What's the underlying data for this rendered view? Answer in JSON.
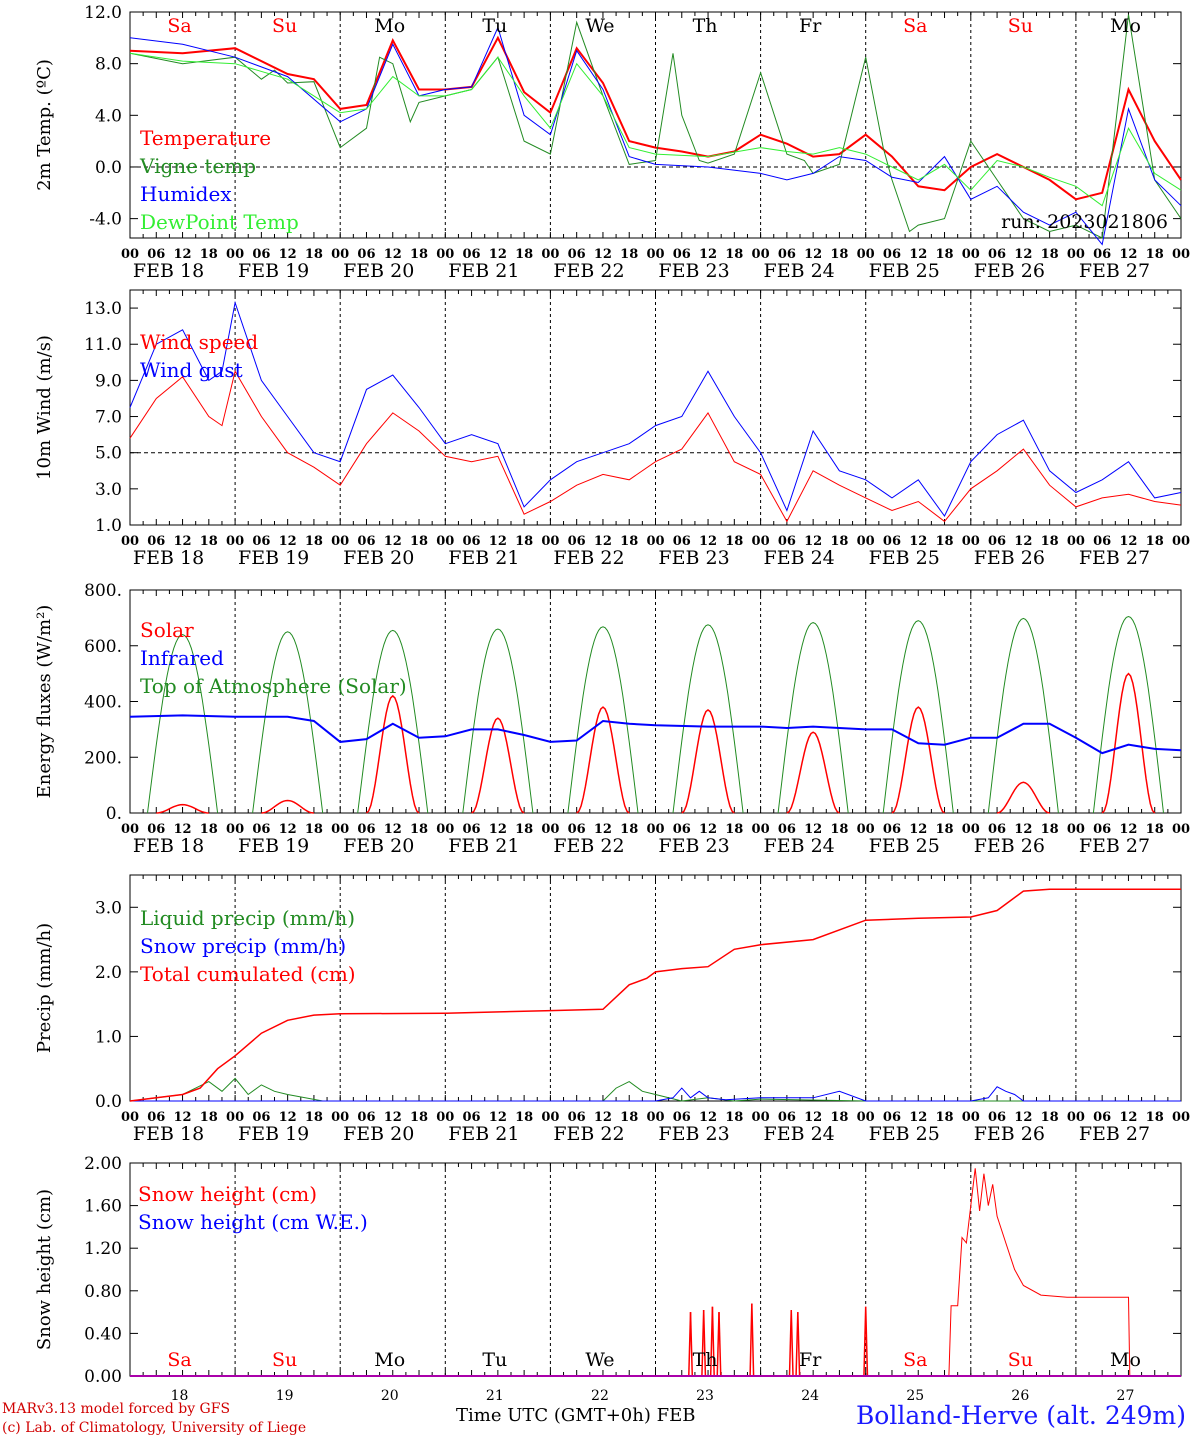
{
  "meta": {
    "run_label": "run: 2023021806",
    "station": "Bolland-Herve (alt. 249m)",
    "credits": [
      "MARv3.13 model forced by GFS",
      "(c) Lab. of Climatology, University of Liege"
    ],
    "xaxis_title": "Time UTC (GMT+0h)",
    "month_label": "FEB"
  },
  "days": {
    "names": [
      "Sa",
      "Su",
      "Mo",
      "Tu",
      "We",
      "Th",
      "Fr",
      "Sa",
      "Su",
      "Mo"
    ],
    "weekend_color": "#ff0000",
    "weekday_color": "#000000",
    "weekend_index": [
      0,
      1,
      7,
      8
    ],
    "date_labels": [
      "FEB 18",
      "FEB 19",
      "FEB 20",
      "FEB 21",
      "FEB 22",
      "FEB 23",
      "FEB 24",
      "FEB 25",
      "FEB 26",
      "FEB 27"
    ],
    "day_numbers": [
      "18",
      "19",
      "20",
      "21",
      "22",
      "23",
      "24",
      "25",
      "26",
      "27"
    ],
    "hour_ticks": [
      "00",
      "06",
      "12",
      "18"
    ],
    "final_hour": "00"
  },
  "colors": {
    "red": "#ff0000",
    "green": "#228b22",
    "blue": "#0000ff",
    "lightgreen": "#33ee33",
    "grid": "#000000"
  },
  "chart_data": [
    {
      "id": "temp",
      "type": "line",
      "ylabel": "2m Temp. (ºC)",
      "ylim": [
        -5.5,
        12.0
      ],
      "ticks": [
        -4.0,
        0.0,
        4.0,
        8.0,
        12.0
      ],
      "tick_labels": [
        "-4.0",
        "0.0",
        "4.0",
        "8.0",
        "12.0"
      ],
      "dashed_ref": 0.0,
      "x_unit": "hours from 2023-02-18 00 UTC",
      "series": [
        {
          "name": "Temperature",
          "color": "#ff0000",
          "width": 2,
          "x": [
            0,
            12,
            24,
            36,
            42,
            48,
            54,
            60,
            66,
            72,
            78,
            84,
            90,
            96,
            102,
            108,
            114,
            120,
            126,
            132,
            138,
            144,
            150,
            156,
            162,
            168,
            174,
            180,
            186,
            192,
            198,
            204,
            210,
            216,
            222,
            228,
            234,
            240
          ],
          "y": [
            9.0,
            8.8,
            9.2,
            7.2,
            6.8,
            4.5,
            4.8,
            9.8,
            6.0,
            6.0,
            6.2,
            10.0,
            5.8,
            4.2,
            9.2,
            6.5,
            2.0,
            1.5,
            1.2,
            0.8,
            1.2,
            2.5,
            1.8,
            0.8,
            1.0,
            2.5,
            0.8,
            -1.5,
            -1.8,
            0.0,
            1.0,
            0.0,
            -1.0,
            -2.5,
            -2.0,
            6.0,
            2.0,
            -1.0
          ]
        },
        {
          "name": "Vigne temp",
          "color": "#228b22",
          "width": 1,
          "x": [
            0,
            12,
            24,
            30,
            33,
            36,
            42,
            48,
            54,
            57,
            60,
            64,
            66,
            72,
            78,
            84,
            90,
            96,
            102,
            108,
            114,
            120,
            124,
            126,
            130,
            132,
            138,
            144,
            150,
            154,
            156,
            162,
            168,
            172,
            174,
            178,
            180,
            186,
            192,
            198,
            204,
            210,
            216,
            222,
            228,
            234,
            240
          ],
          "y": [
            8.8,
            8.0,
            8.5,
            6.8,
            7.5,
            6.5,
            6.6,
            1.5,
            3.0,
            8.5,
            8.0,
            3.5,
            5.0,
            5.5,
            6.0,
            8.5,
            2.0,
            1.0,
            11.2,
            5.5,
            0.2,
            0.5,
            8.8,
            4.0,
            0.5,
            0.3,
            1.0,
            7.3,
            1.0,
            0.5,
            -0.5,
            0.2,
            8.5,
            1.5,
            -1.0,
            -5.0,
            -4.5,
            -4.0,
            2.0,
            -1.0,
            -4.0,
            -5.0,
            -4.5,
            -5.5,
            11.8,
            -1.0,
            -4.0
          ]
        },
        {
          "name": "Humidex",
          "color": "#0000ff",
          "width": 1,
          "x": [
            0,
            12,
            24,
            36,
            48,
            54,
            60,
            66,
            72,
            78,
            84,
            90,
            96,
            102,
            108,
            114,
            120,
            132,
            144,
            150,
            156,
            162,
            168,
            174,
            180,
            186,
            192,
            198,
            204,
            210,
            216,
            222,
            228,
            234,
            240
          ],
          "y": [
            10.0,
            9.5,
            8.5,
            7.0,
            3.5,
            4.5,
            9.5,
            5.5,
            6.0,
            6.2,
            10.8,
            4.0,
            2.5,
            9.0,
            6.0,
            0.8,
            0.2,
            0.0,
            -0.5,
            -1.0,
            -0.5,
            0.8,
            0.5,
            -0.8,
            -1.2,
            0.8,
            -2.5,
            -1.5,
            -3.5,
            -4.5,
            -3.5,
            -6.0,
            4.5,
            -1.0,
            -3.0
          ]
        },
        {
          "name": "DewPoint Temp",
          "color": "#33ee33",
          "width": 1,
          "x": [
            0,
            12,
            24,
            36,
            48,
            54,
            60,
            66,
            72,
            78,
            84,
            90,
            96,
            102,
            108,
            114,
            120,
            132,
            144,
            150,
            156,
            162,
            168,
            174,
            180,
            186,
            192,
            198,
            204,
            210,
            216,
            222,
            228,
            234,
            240
          ],
          "y": [
            8.8,
            8.2,
            8.0,
            6.8,
            4.2,
            4.5,
            7.0,
            5.5,
            5.5,
            6.0,
            8.5,
            5.5,
            3.0,
            8.0,
            5.5,
            1.5,
            1.0,
            0.8,
            1.5,
            1.2,
            1.0,
            1.5,
            1.0,
            0.0,
            -1.0,
            0.2,
            -1.8,
            0.5,
            0.0,
            -0.8,
            -1.5,
            -3.0,
            3.0,
            -0.5,
            -1.8
          ]
        }
      ],
      "legend": [
        "Temperature",
        "Vigne temp",
        "Humidex",
        "DewPoint Temp"
      ],
      "legend_colors": [
        "#ff0000",
        "#228b22",
        "#0000ff",
        "#33ee33"
      ]
    },
    {
      "id": "wind",
      "type": "line",
      "ylabel": "10m Wind (m/s)",
      "ylim": [
        1.0,
        14.0
      ],
      "ticks": [
        1.0,
        3.0,
        5.0,
        7.0,
        9.0,
        11.0,
        13.0
      ],
      "tick_labels": [
        "1.0",
        "3.0",
        "5.0",
        "7.0",
        "9.0",
        "11.0",
        "13.0"
      ],
      "dashed_ref": 5.0,
      "series": [
        {
          "name": "Wind speed",
          "color": "#ff0000",
          "width": 1,
          "x": [
            0,
            6,
            12,
            18,
            21,
            24,
            30,
            36,
            42,
            48,
            54,
            60,
            66,
            72,
            78,
            84,
            90,
            96,
            102,
            108,
            114,
            120,
            126,
            132,
            138,
            144,
            150,
            156,
            162,
            168,
            174,
            180,
            186,
            192,
            198,
            204,
            210,
            216,
            222,
            228,
            234,
            240
          ],
          "y": [
            5.8,
            8.0,
            9.2,
            7.0,
            6.5,
            9.5,
            7.0,
            5.0,
            4.2,
            3.2,
            5.5,
            7.2,
            6.2,
            4.8,
            4.5,
            4.8,
            1.6,
            2.3,
            3.2,
            3.8,
            3.5,
            4.5,
            5.2,
            7.2,
            4.5,
            3.8,
            1.2,
            4.0,
            3.2,
            2.5,
            1.8,
            2.3,
            1.2,
            3.0,
            4.0,
            5.2,
            3.2,
            2.0,
            2.5,
            2.7,
            2.3,
            2.1
          ]
        },
        {
          "name": "Wind gust",
          "color": "#0000ff",
          "width": 1,
          "x": [
            0,
            6,
            12,
            18,
            21,
            24,
            30,
            36,
            42,
            48,
            54,
            60,
            66,
            72,
            78,
            84,
            90,
            96,
            102,
            108,
            114,
            120,
            126,
            132,
            138,
            144,
            150,
            156,
            162,
            168,
            174,
            180,
            186,
            192,
            198,
            204,
            210,
            216,
            222,
            228,
            234,
            240
          ],
          "y": [
            7.5,
            11.0,
            11.8,
            9.0,
            9.5,
            13.3,
            9.0,
            7.0,
            5.0,
            4.5,
            8.5,
            9.3,
            7.5,
            5.5,
            6.0,
            5.5,
            2.0,
            3.5,
            4.5,
            5.0,
            5.5,
            6.5,
            7.0,
            9.5,
            7.0,
            5.0,
            1.8,
            6.2,
            4.0,
            3.5,
            2.5,
            3.5,
            1.5,
            4.5,
            6.0,
            6.8,
            4.0,
            2.8,
            3.5,
            4.5,
            2.5,
            2.8
          ]
        }
      ],
      "legend": [
        "Wind speed",
        "Wind gust"
      ],
      "legend_colors": [
        "#ff0000",
        "#0000ff"
      ]
    },
    {
      "id": "energy",
      "type": "line",
      "ylabel": "Energy fluxes (W/m²)",
      "ylim": [
        0,
        800
      ],
      "ticks": [
        0,
        200,
        400,
        600,
        800
      ],
      "tick_labels": [
        "0.",
        "200.",
        "400.",
        "600.",
        "800."
      ],
      "toa_peaks": [
        640,
        650,
        655,
        660,
        668,
        675,
        683,
        690,
        698,
        705
      ],
      "solar_peaks": [
        30,
        45,
        420,
        340,
        380,
        370,
        290,
        380,
        110,
        500
      ],
      "infrared": {
        "x": [
          0,
          12,
          24,
          36,
          42,
          48,
          54,
          60,
          66,
          72,
          78,
          84,
          90,
          96,
          102,
          108,
          114,
          120,
          132,
          144,
          150,
          156,
          168,
          174,
          180,
          186,
          192,
          198,
          204,
          210,
          216,
          222,
          228,
          234,
          240
        ],
        "y": [
          345,
          350,
          345,
          345,
          330,
          255,
          265,
          320,
          270,
          275,
          300,
          300,
          280,
          255,
          260,
          330,
          320,
          315,
          310,
          310,
          305,
          310,
          300,
          300,
          250,
          245,
          270,
          270,
          320,
          320,
          270,
          215,
          245,
          230,
          225
        ]
      },
      "series": [
        {
          "name": "Solar",
          "color": "#ff0000"
        },
        {
          "name": "Infrared",
          "color": "#0000ff"
        },
        {
          "name": "Top of Atmosphere (Solar)",
          "color": "#228b22"
        }
      ],
      "legend": [
        "Solar",
        "Infrared",
        "Top of Atmosphere (Solar)"
      ],
      "legend_colors": [
        "#ff0000",
        "#0000ff",
        "#228b22"
      ]
    },
    {
      "id": "precip",
      "type": "line",
      "ylabel": "Precip (mm/h)",
      "ylim": [
        0,
        3.5
      ],
      "ticks": [
        0.0,
        1.0,
        2.0,
        3.0
      ],
      "tick_labels": [
        "0.0",
        "1.0",
        "2.0",
        "3.0"
      ],
      "series": [
        {
          "name": "Liquid precip (mm/h)",
          "color": "#228b22",
          "x": [
            0,
            6,
            12,
            15,
            18,
            21,
            24,
            27,
            30,
            33,
            36,
            40,
            44,
            48,
            96,
            108,
            111,
            114,
            117,
            120,
            126,
            132,
            138,
            144,
            168,
            192,
            240
          ],
          "y": [
            0,
            0.05,
            0.1,
            0.2,
            0.3,
            0.15,
            0.35,
            0.1,
            0.25,
            0.15,
            0.1,
            0.05,
            0,
            0,
            0,
            0,
            0.2,
            0.3,
            0.15,
            0.1,
            0,
            0.05,
            0,
            0.03,
            0,
            0,
            0
          ]
        },
        {
          "name": "Snow precip (mm/h)",
          "color": "#0000ff",
          "x": [
            0,
            120,
            124,
            126,
            128,
            130,
            132,
            136,
            144,
            156,
            162,
            168,
            192,
            196,
            198,
            200,
            202,
            204,
            240
          ],
          "y": [
            0,
            0,
            0.05,
            0.2,
            0.05,
            0.15,
            0.05,
            0.02,
            0.05,
            0.05,
            0.15,
            0,
            0,
            0.05,
            0.22,
            0.15,
            0.1,
            0,
            0
          ]
        },
        {
          "name": "Total cumulated (cm)",
          "color": "#ff0000",
          "x": [
            0,
            6,
            12,
            16,
            20,
            24,
            30,
            36,
            42,
            48,
            72,
            96,
            108,
            114,
            118,
            120,
            126,
            132,
            138,
            144,
            156,
            168,
            180,
            192,
            198,
            204,
            210,
            216,
            240
          ],
          "y": [
            0,
            0.05,
            0.1,
            0.2,
            0.5,
            0.7,
            1.05,
            1.25,
            1.33,
            1.35,
            1.36,
            1.4,
            1.42,
            1.8,
            1.9,
            2.0,
            2.05,
            2.08,
            2.35,
            2.42,
            2.5,
            2.8,
            2.83,
            2.85,
            2.95,
            3.25,
            3.28,
            3.28,
            3.28
          ]
        }
      ],
      "legend": [
        "Liquid precip (mm/h)",
        "Snow precip (mm/h)",
        "Total cumulated (cm)"
      ],
      "legend_colors": [
        "#228b22",
        "#0000ff",
        "#ff0000"
      ]
    },
    {
      "id": "snow",
      "type": "line",
      "ylabel": "Snow height (cm)",
      "ylim": [
        0,
        2.0
      ],
      "ticks": [
        0.0,
        0.4,
        0.8,
        1.2,
        1.6,
        2.0
      ],
      "tick_labels": [
        "0.00",
        "0.40",
        "0.80",
        "1.20",
        "1.60",
        "2.00"
      ],
      "spikes": [
        {
          "x": 128,
          "h": 0.6
        },
        {
          "x": 131,
          "h": 0.62
        },
        {
          "x": 133,
          "h": 0.65
        },
        {
          "x": 134.5,
          "h": 0.6
        },
        {
          "x": 142,
          "h": 0.68
        },
        {
          "x": 151,
          "h": 0.62
        },
        {
          "x": 152.5,
          "h": 0.6
        },
        {
          "x": 168,
          "h": 0.65
        }
      ],
      "series": [
        {
          "name": "Snow height (cm)",
          "color": "#ff0000",
          "x": [
            0,
            187,
            187.5,
            189,
            190,
            191,
            192,
            193,
            194,
            195,
            196,
            197,
            198,
            200,
            202,
            204,
            208,
            214,
            222,
            228,
            228.3,
            240
          ],
          "y": [
            0,
            0,
            0.66,
            0.66,
            1.3,
            1.25,
            1.6,
            1.95,
            1.55,
            1.9,
            1.6,
            1.8,
            1.5,
            1.25,
            1.0,
            0.85,
            0.76,
            0.74,
            0.74,
            0.74,
            0,
            0
          ]
        },
        {
          "name": "Snow height (cm W.E.)",
          "color": "#0000ff",
          "x": [
            0,
            240
          ],
          "y": [
            0,
            0
          ]
        }
      ],
      "legend": [
        "Snow height (cm)",
        "Snow height (cm W.E.)"
      ],
      "legend_colors": [
        "#ff0000",
        "#0000ff"
      ]
    }
  ]
}
